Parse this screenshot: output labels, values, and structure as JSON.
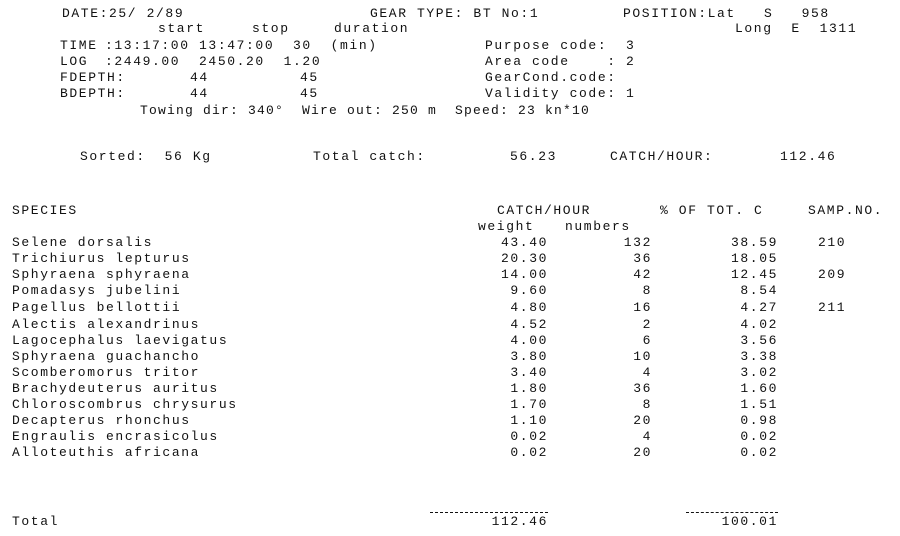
{
  "header": {
    "date": "DATE:25/ 2/89",
    "gear_type": "GEAR TYPE: BT No:1",
    "position_lat": "POSITION:Lat   S   958",
    "position_long": "Long  E  1311",
    "col_start": "start",
    "col_stop": "stop",
    "col_duration": "duration",
    "time_label": "TIME",
    "time_values": ":13:17:00 13:47:00  30  (min)",
    "log_label": "LOG",
    "log_values": ":2449.00  2450.20  1.20",
    "fdepth_label": "FDEPTH:",
    "fdepth_start": "44",
    "fdepth_stop": "45",
    "bdepth_label": "BDEPTH:",
    "bdepth_start": "44",
    "bdepth_stop": "45",
    "purpose_code": "Purpose code:  3",
    "area_code": "Area code    : 2",
    "gearcond_code": "GearCond.code:",
    "validity_code": "Validity code: 1",
    "towing": "Towing dir: 340°  Wire out: 250 m  Speed: 23 kn*10"
  },
  "summary": {
    "sorted": "Sorted:  56 Kg",
    "total_catch_label": "Total catch:",
    "total_catch_value": "56.23",
    "catch_hour_label": "CATCH/HOUR:",
    "catch_hour_value": "112.46"
  },
  "table": {
    "col_species": "SPECIES",
    "col_catch_hour": "CATCH/HOUR",
    "col_pct": "% OF TOT. C",
    "col_samp": "SAMP.NO.",
    "sub_weight": "weight",
    "sub_numbers": "numbers",
    "rows": [
      {
        "species": "Selene dorsalis",
        "weight": "43.40",
        "numbers": "132",
        "pct": "38.59",
        "samp": "210"
      },
      {
        "species": "Trichiurus lepturus",
        "weight": "20.30",
        "numbers": "36",
        "pct": "18.05",
        "samp": ""
      },
      {
        "species": "Sphyraena sphyraena",
        "weight": "14.00",
        "numbers": "42",
        "pct": "12.45",
        "samp": "209"
      },
      {
        "species": "Pomadasys jubelini",
        "weight": "9.60",
        "numbers": "8",
        "pct": "8.54",
        "samp": ""
      },
      {
        "species": "Pagellus bellottii",
        "weight": "4.80",
        "numbers": "16",
        "pct": "4.27",
        "samp": "211"
      },
      {
        "species": "Alectis alexandrinus",
        "weight": "4.52",
        "numbers": "2",
        "pct": "4.02",
        "samp": ""
      },
      {
        "species": "Lagocephalus laevigatus",
        "weight": "4.00",
        "numbers": "6",
        "pct": "3.56",
        "samp": ""
      },
      {
        "species": "Sphyraena guachancho",
        "weight": "3.80",
        "numbers": "10",
        "pct": "3.38",
        "samp": ""
      },
      {
        "species": "Scomberomorus tritor",
        "weight": "3.40",
        "numbers": "4",
        "pct": "3.02",
        "samp": ""
      },
      {
        "species": "Brachydeuterus auritus",
        "weight": "1.80",
        "numbers": "36",
        "pct": "1.60",
        "samp": ""
      },
      {
        "species": "Chloroscombrus chrysurus",
        "weight": "1.70",
        "numbers": "8",
        "pct": "1.51",
        "samp": ""
      },
      {
        "species": "Decapterus rhonchus",
        "weight": "1.10",
        "numbers": "20",
        "pct": "0.98",
        "samp": ""
      },
      {
        "species": "Engraulis encrasicolus",
        "weight": "0.02",
        "numbers": "4",
        "pct": "0.02",
        "samp": ""
      },
      {
        "species": "Alloteuthis africana",
        "weight": "0.02",
        "numbers": "20",
        "pct": "0.02",
        "samp": ""
      }
    ],
    "total_label": "Total",
    "total_weight": "112.46",
    "total_pct": "100.01"
  }
}
